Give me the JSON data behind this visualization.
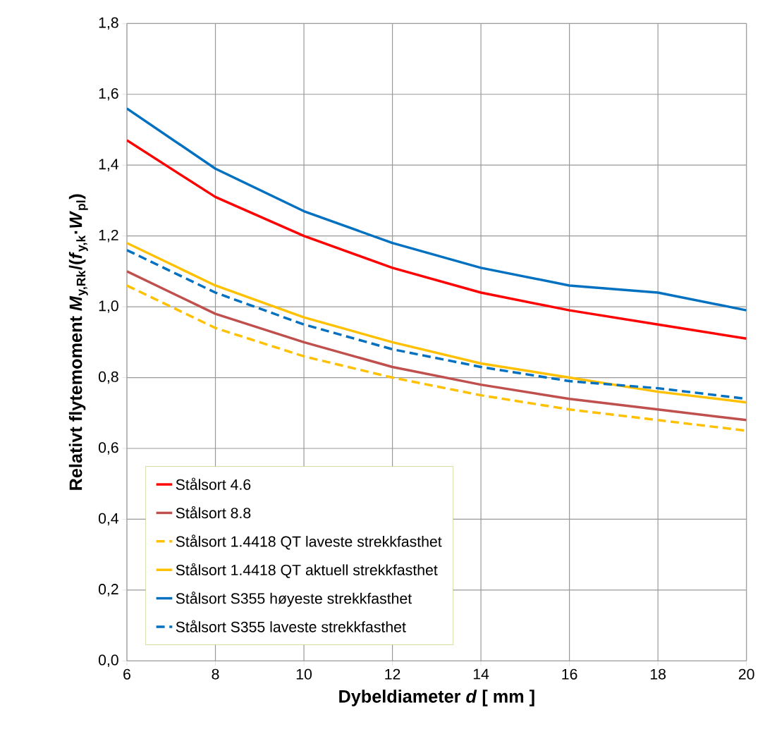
{
  "chart_data": {
    "type": "line",
    "xlabel": "Dybeldiameter *d* [ mm ]",
    "ylabel": "Relativt flytemoment *M*$_{y,Rk}$/(*f*$_{y,k}$·*W*$_{pl}$)",
    "x": [
      6,
      8,
      10,
      12,
      14,
      16,
      18,
      20
    ],
    "series": [
      {
        "name": "Stålsort 4.6",
        "color": "#ff0000",
        "line_style": "solid",
        "values": [
          1.47,
          1.31,
          1.2,
          1.11,
          1.04,
          0.99,
          0.95,
          0.91
        ]
      },
      {
        "name": "Stålsort 8.8",
        "color": "#c0504d",
        "line_style": "solid",
        "values": [
          1.1,
          0.98,
          0.9,
          0.83,
          0.78,
          0.74,
          0.71,
          0.68
        ]
      },
      {
        "name": "Stålsort 1.4418 QT laveste strekkfasthet",
        "color": "#ffc000",
        "line_style": "dashed",
        "values": [
          1.06,
          0.94,
          0.86,
          0.8,
          0.75,
          0.71,
          0.68,
          0.65
        ]
      },
      {
        "name": "Stålsort 1.4418 QT aktuell strekkfasthet",
        "color": "#ffc000",
        "line_style": "solid",
        "values": [
          1.18,
          1.06,
          0.97,
          0.9,
          0.84,
          0.8,
          0.76,
          0.73
        ]
      },
      {
        "name": "Stålsort S355 høyeste strekkfasthet",
        "color": "#0070c0",
        "line_style": "solid",
        "values": [
          1.56,
          1.39,
          1.27,
          1.18,
          1.11,
          1.06,
          1.04,
          0.99
        ]
      },
      {
        "name": "Stålsort S355 laveste strekkfasthet",
        "color": "#0070c0",
        "line_style": "dashed",
        "values": [
          1.16,
          1.04,
          0.95,
          0.88,
          0.83,
          0.79,
          0.77,
          0.74
        ]
      }
    ],
    "xlim": [
      6,
      20
    ],
    "xticks": [
      6,
      8,
      10,
      12,
      14,
      16,
      18,
      20
    ],
    "ylim": [
      0,
      1.8
    ],
    "yticks": [
      {
        "value": 0,
        "label": "0,0"
      },
      {
        "value": 0.2,
        "label": "0,2"
      },
      {
        "value": 0.4,
        "label": "0,4"
      },
      {
        "value": 0.6,
        "label": "0,6"
      },
      {
        "value": 0.8,
        "label": "0,8"
      },
      {
        "value": 1.0,
        "label": "1,0"
      },
      {
        "value": 1.2,
        "label": "1,2"
      },
      {
        "value": 1.4,
        "label": "1,4"
      },
      {
        "value": 1.6,
        "label": "1,6"
      },
      {
        "value": 1.8,
        "label": "1,8"
      }
    ],
    "grid": true,
    "legend": "bottom left",
    "marker": "none"
  }
}
